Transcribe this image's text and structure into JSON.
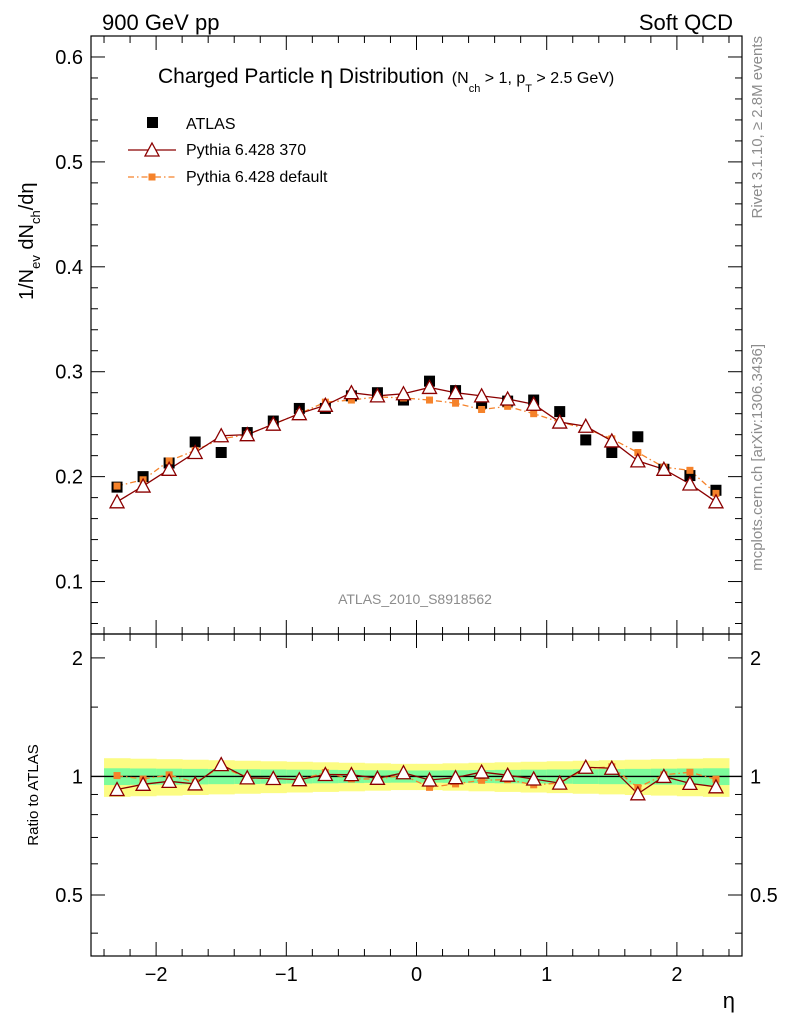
{
  "header": {
    "left_label": "900 GeV pp",
    "right_label": "Soft QCD"
  },
  "side": {
    "rivet": "Rivet 3.1.10, ≥ 2.8M events",
    "mcplots": "mcplots.cern.ch [arXiv:1306.3436]"
  },
  "chart_data": {
    "type": "scatter",
    "title": "Charged Particle η Distribution",
    "title_main": "Charged Particle",
    "title_eta": "η",
    "title_tail": "Distribution",
    "subtitle": "(N_ch > 1, p_T > 2.5 GeV)",
    "sub_open": "(N",
    "sub_ch": "ch",
    "sub_mid": " > 1, p",
    "sub_t": "T",
    "sub_close": " > 2.5 GeV)",
    "analysis_tag": "ATLAS_2010_S8918562",
    "xlabel": "η",
    "ylabel": "1/N_ev dN_ch/dη",
    "ylabel_parts": {
      "a": "1/N",
      "ev": "ev",
      "b": " dN",
      "ch": "ch",
      "c": "/dη"
    },
    "ratio_ylabel": "Ratio to ATLAS",
    "xlim": [
      -2.5,
      2.5
    ],
    "ylim": [
      0.05,
      0.62
    ],
    "ratio_ylim": [
      0.35,
      2.3
    ],
    "x_ticks": [
      -2,
      -1,
      0,
      1,
      2
    ],
    "x_tick_labels": [
      "−2",
      "−1",
      "0",
      "1",
      "2"
    ],
    "y_ticks": [
      0.1,
      0.2,
      0.3,
      0.4,
      0.5,
      0.6
    ],
    "y_tick_labels": [
      "0.1",
      "0.2",
      "0.3",
      "0.4",
      "0.5",
      "0.6"
    ],
    "ratio_ticks": [
      0.5,
      1,
      2
    ],
    "ratio_tick_labels": [
      "0.5",
      "1",
      "2"
    ],
    "x": [
      -2.3,
      -2.1,
      -1.9,
      -1.7,
      -1.5,
      -1.3,
      -1.1,
      -0.9,
      -0.7,
      -0.5,
      -0.3,
      -0.1,
      0.1,
      0.3,
      0.5,
      0.7,
      0.9,
      1.1,
      1.3,
      1.5,
      1.7,
      1.9,
      2.1,
      2.3
    ],
    "series": [
      {
        "name": "ATLAS",
        "marker": "square",
        "color": "#000000",
        "values": [
          0.19,
          0.2,
          0.213,
          0.233,
          0.223,
          0.242,
          0.253,
          0.265,
          0.265,
          0.277,
          0.28,
          0.273,
          0.291,
          0.282,
          0.27,
          0.272,
          0.273,
          0.262,
          0.235,
          0.223,
          0.238,
          0.207,
          0.201,
          0.187
        ]
      },
      {
        "name": "Pythia 6.428 370",
        "marker": "triangle-open",
        "color": "#8b0000",
        "values": [
          0.176,
          0.191,
          0.207,
          0.223,
          0.239,
          0.24,
          0.25,
          0.26,
          0.268,
          0.28,
          0.277,
          0.279,
          0.285,
          0.28,
          0.277,
          0.274,
          0.269,
          0.252,
          0.248,
          0.234,
          0.215,
          0.207,
          0.193,
          0.176
        ]
      },
      {
        "name": "Pythia 6.428 default",
        "marker": "square-small",
        "color": "#f5822a",
        "values": [
          0.191,
          0.197,
          0.215,
          0.225,
          0.236,
          0.24,
          0.25,
          0.26,
          0.271,
          0.273,
          0.276,
          0.275,
          0.273,
          0.27,
          0.264,
          0.267,
          0.26,
          0.252,
          0.246,
          0.236,
          0.223,
          0.209,
          0.206,
          0.184
        ]
      }
    ],
    "ratio_band": {
      "inner_color": "#7dfc9b",
      "outer_color": "#fcfc83",
      "inner_halfwidth": 0.035,
      "outer_halfwidth": 0.075
    }
  }
}
